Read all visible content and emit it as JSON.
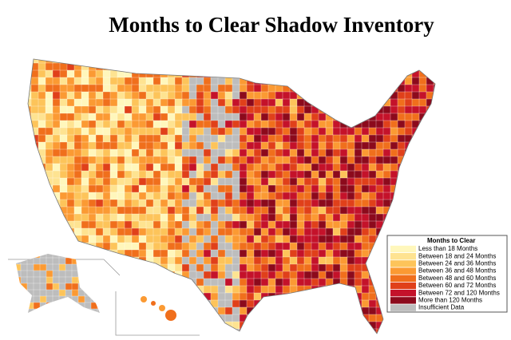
{
  "title": "Months to Clear Shadow Inventory",
  "legend": {
    "title": "Months to Clear",
    "items": [
      {
        "label": "Less than 18 Months",
        "color": "#fff7bc"
      },
      {
        "label": "Between 18 and 24 Months",
        "color": "#fee391"
      },
      {
        "label": "Between 24 and 36 Months",
        "color": "#fdc45a"
      },
      {
        "label": "Between 36 and 48 Months",
        "color": "#fb9a33"
      },
      {
        "label": "Between 48 and 60 Months",
        "color": "#f06f1c"
      },
      {
        "label": "Between 60 and 72 Months",
        "color": "#e0401a"
      },
      {
        "label": "Between 72 and 120 Months",
        "color": "#c4122a"
      },
      {
        "label": "More than 120 Months",
        "color": "#8c0a1c"
      },
      {
        "label": "Insufficient Data",
        "color": "#bdbdbd"
      }
    ]
  }
}
